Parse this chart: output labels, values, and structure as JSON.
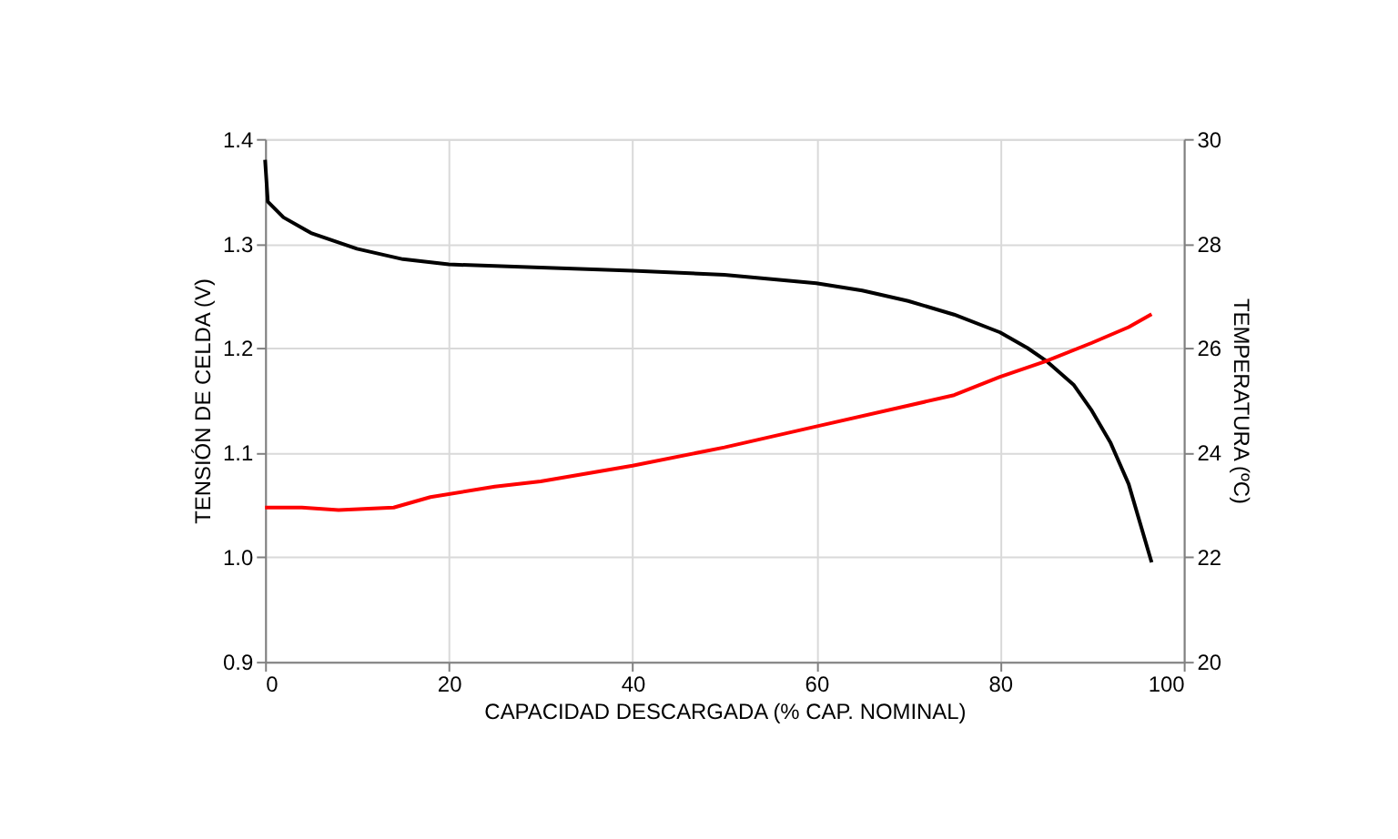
{
  "chart_data": {
    "type": "line",
    "xlabel": "CAPACIDAD DESCARGADA (% CAP. NOMINAL)",
    "ylabel": "TENSIÓN DE CELDA (V)",
    "y2label": "TEMPERATURA (ºC)",
    "xlim": [
      0,
      100
    ],
    "xticks": [
      0,
      20,
      40,
      60,
      80,
      100
    ],
    "ylim": [
      0.9,
      1.4
    ],
    "yticks": [
      {
        "value": 0.9,
        "label": "0.9"
      },
      {
        "value": 1.0,
        "label": "1.0"
      },
      1.1,
      1.2,
      1.3,
      {
        "value": 1.4,
        "label": "1.4"
      }
    ],
    "y2lim": [
      20,
      30
    ],
    "y2ticks": [
      20,
      22,
      24,
      26,
      28,
      30
    ],
    "grid": true,
    "marker": "none",
    "line_style": "solid",
    "series": [
      {
        "color": "#000000",
        "x": [
          0,
          0.3,
          2,
          5,
          10,
          15,
          20,
          30,
          40,
          50,
          60,
          65,
          70,
          75,
          80,
          83,
          85,
          88,
          90,
          92,
          94,
          95,
          96.5
        ],
        "values": [
          1.38,
          1.34,
          1.325,
          1.31,
          1.295,
          1.285,
          1.28,
          1.277,
          1.274,
          1.27,
          1.262,
          1.255,
          1.245,
          1.232,
          1.215,
          1.2,
          1.188,
          1.165,
          1.14,
          1.11,
          1.07,
          1.04,
          0.995
        ]
      },
      {
        "color": "#ff0000",
        "axis": "y2",
        "x": [
          0,
          4,
          8,
          14,
          18,
          25,
          30,
          40,
          50,
          60,
          70,
          75,
          80,
          85,
          90,
          94,
          96.5
        ],
        "values": [
          22.95,
          22.95,
          22.9,
          22.95,
          23.15,
          23.35,
          23.45,
          23.75,
          24.1,
          24.5,
          24.9,
          25.1,
          25.45,
          25.75,
          26.1,
          26.4,
          26.65
        ]
      }
    ]
  }
}
